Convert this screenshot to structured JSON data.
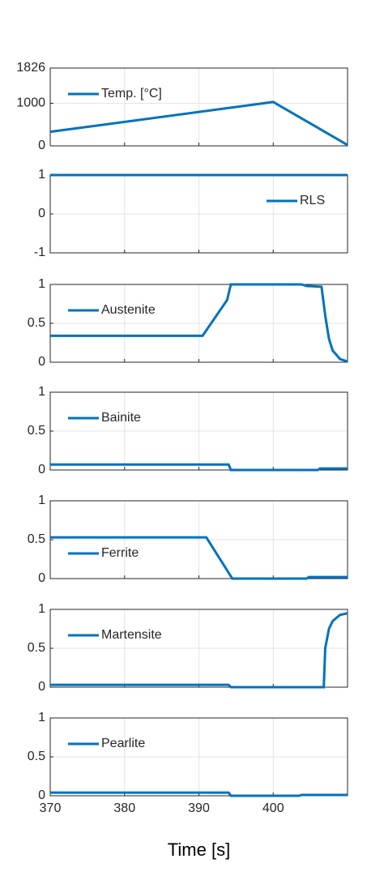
{
  "chart_data": [
    {
      "type": "line",
      "x": [
        370,
        400,
        410
      ],
      "series": [
        {
          "name": "Temp. [°C]",
          "color": "#0072BD",
          "values": [
            330,
            1030,
            20
          ]
        }
      ],
      "xlim": [
        370,
        410
      ],
      "xticks": [
        370,
        380,
        390,
        400
      ],
      "ylim": [
        0,
        1826
      ],
      "yticks": [
        0,
        1000,
        1826
      ],
      "grid": true,
      "legend": "northwest"
    },
    {
      "type": "line",
      "x": [
        370,
        410
      ],
      "series": [
        {
          "name": "RLS",
          "color": "#0072BD",
          "values": [
            1,
            1
          ]
        }
      ],
      "xlim": [
        370,
        410
      ],
      "xticks": [
        370,
        380,
        390,
        400
      ],
      "ylim": [
        -1,
        1
      ],
      "yticks": [
        -1,
        0,
        1
      ],
      "grid": true,
      "legend": "northeast"
    },
    {
      "type": "line",
      "x": [
        370,
        390.5,
        393.8,
        394.3,
        403.8,
        404.5,
        406.5,
        407,
        407.5,
        408,
        409,
        410
      ],
      "series": [
        {
          "name": "Austenite",
          "color": "#0072BD",
          "values": [
            0.34,
            0.34,
            0.8,
            1,
            1,
            0.98,
            0.97,
            0.6,
            0.3,
            0.15,
            0.04,
            0.01
          ]
        }
      ],
      "xlim": [
        370,
        410
      ],
      "xticks": [
        370,
        380,
        390,
        400
      ],
      "ylim": [
        0,
        1
      ],
      "yticks": [
        0,
        0.5,
        1
      ],
      "grid": true,
      "legend": "northwest"
    },
    {
      "type": "line",
      "x": [
        370,
        394,
        394.3,
        406,
        406.3,
        410
      ],
      "series": [
        {
          "name": "Bainite",
          "color": "#0072BD",
          "values": [
            0.07,
            0.07,
            0,
            0,
            0.02,
            0.02
          ]
        }
      ],
      "xlim": [
        370,
        410
      ],
      "xticks": [
        370,
        380,
        390,
        400
      ],
      "ylim": [
        0,
        1
      ],
      "yticks": [
        0,
        0.5,
        1
      ],
      "grid": true,
      "legend": "northwest"
    },
    {
      "type": "line",
      "x": [
        370,
        391,
        394.5,
        404.5,
        404.8,
        410
      ],
      "series": [
        {
          "name": "Ferrite",
          "color": "#0072BD",
          "values": [
            0.53,
            0.53,
            0,
            0,
            0.02,
            0.02
          ]
        }
      ],
      "xlim": [
        370,
        410
      ],
      "xticks": [
        370,
        380,
        390,
        400
      ],
      "ylim": [
        0,
        1
      ],
      "yticks": [
        0,
        0.5,
        1
      ],
      "grid": true,
      "legend": "southwest"
    },
    {
      "type": "line",
      "x": [
        370,
        394,
        394.3,
        406.8,
        407,
        407.5,
        408,
        409,
        410
      ],
      "series": [
        {
          "name": "Martensite",
          "color": "#0072BD",
          "values": [
            0.03,
            0.03,
            0,
            0,
            0.5,
            0.75,
            0.85,
            0.93,
            0.95
          ]
        }
      ],
      "xlim": [
        370,
        410
      ],
      "xticks": [
        370,
        380,
        390,
        400
      ],
      "ylim": [
        0,
        1
      ],
      "yticks": [
        0,
        0.5,
        1
      ],
      "grid": true,
      "legend": "northwest"
    },
    {
      "type": "line",
      "x": [
        370,
        394,
        394.3,
        403.5,
        403.8,
        410
      ],
      "series": [
        {
          "name": "Pearlite",
          "color": "#0072BD",
          "values": [
            0.04,
            0.04,
            0,
            0,
            0.01,
            0.01
          ]
        }
      ],
      "xlim": [
        370,
        410
      ],
      "xticks": [
        370,
        380,
        390,
        400
      ],
      "ylim": [
        0,
        1
      ],
      "yticks": [
        0,
        0.5,
        1
      ],
      "grid": true,
      "legend": "northwest",
      "xlabel": "Time [s]",
      "show_xtick_labels": true
    }
  ]
}
